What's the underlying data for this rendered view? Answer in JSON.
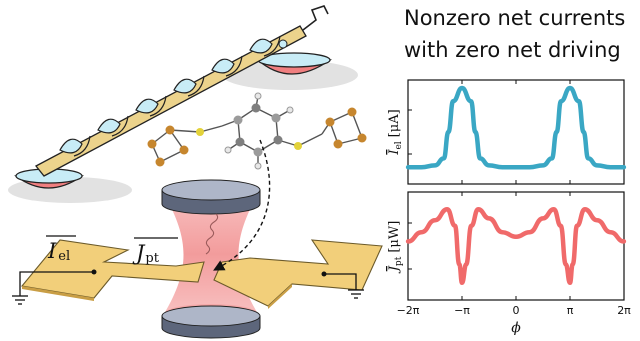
{
  "title": {
    "line1": "Nonzero net currents",
    "line2": "with zero net driving"
  },
  "labels": {
    "current_el": "I",
    "current_el_sub": "el",
    "current_pt": "J",
    "current_pt_sub": "pt"
  },
  "colors": {
    "electric": "#3aa7c4",
    "heat": "#f06a6a",
    "electrode": "#f2cf7a",
    "pipe_tape": "#ecd38c",
    "water": "#c8ecf6",
    "bowl": "#f07f80",
    "sulfur": "#e3d23a",
    "gold": "#c6862e",
    "cavity_glow": "#f4a0a0"
  },
  "icons": [
    "archimedes-screw-icon",
    "molecule-icon",
    "cavity-mirror-icon",
    "ground-icon"
  ],
  "chart_data": [
    {
      "type": "line",
      "ylabel": "I_el [μA]",
      "ylabel_main": "I",
      "ylabel_sub": "el",
      "ylabel_unit": "[μA]",
      "x": [
        -6.28,
        -5.5,
        -4.71,
        -4.2,
        -3.93,
        -3.66,
        -3.14,
        -2.62,
        -2.36,
        -2.09,
        -1.57,
        -0.79,
        0,
        0.79,
        1.57,
        2.09,
        2.36,
        2.62,
        3.14,
        3.66,
        3.93,
        4.2,
        4.71,
        5.5,
        6.28
      ],
      "y": [
        0.1,
        0.1,
        0.12,
        0.2,
        0.5,
        0.85,
        1.0,
        0.85,
        0.5,
        0.2,
        0.12,
        0.1,
        0.1,
        0.1,
        0.12,
        0.2,
        0.5,
        0.85,
        1.0,
        0.85,
        0.5,
        0.2,
        0.12,
        0.1,
        0.1
      ],
      "color": "#3aa7c4"
    },
    {
      "type": "line",
      "xlabel": "ϕ",
      "ylabel": "J_pt [μW]",
      "ylabel_main": "J",
      "ylabel_sub": "pt",
      "ylabel_unit": "[μW]",
      "xticks": [
        "−2π",
        "−π",
        "0",
        "π",
        "2π"
      ],
      "xtick_values": [
        -6.283,
        -3.1416,
        0,
        3.1416,
        6.283
      ],
      "xlim": [
        -6.283,
        6.283
      ],
      "x": [
        -6.28,
        -5.5,
        -4.71,
        -4.0,
        -3.55,
        -3.3,
        -3.14,
        -2.9,
        -2.6,
        -2.2,
        -1.57,
        -0.79,
        0,
        0.79,
        1.57,
        2.2,
        2.6,
        2.9,
        3.14,
        3.3,
        3.55,
        4.0,
        4.71,
        5.5,
        6.28
      ],
      "y": [
        0.55,
        0.65,
        0.78,
        0.9,
        0.72,
        0.3,
        0.1,
        0.3,
        0.72,
        0.9,
        0.8,
        0.65,
        0.6,
        0.65,
        0.8,
        0.9,
        0.72,
        0.3,
        0.1,
        0.3,
        0.72,
        0.9,
        0.78,
        0.65,
        0.55
      ],
      "color": "#f06a6a"
    }
  ]
}
